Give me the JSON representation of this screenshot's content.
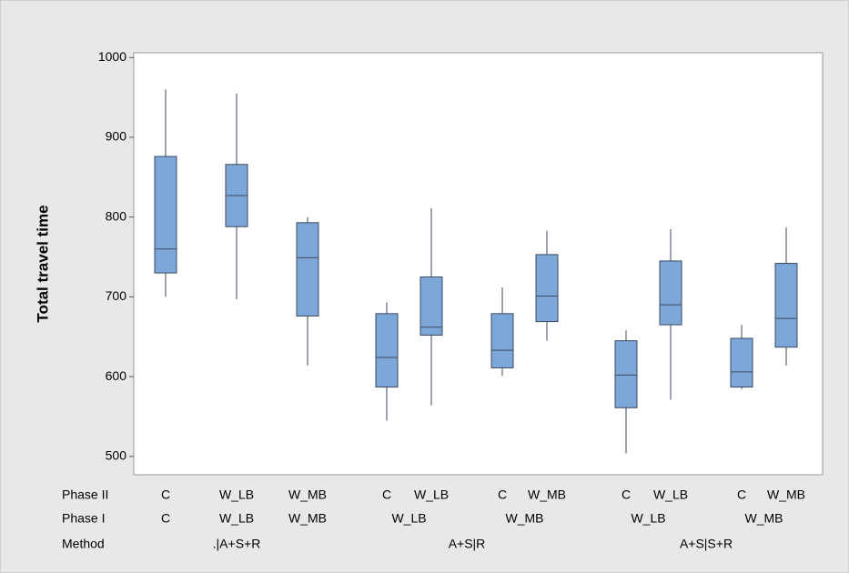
{
  "chart_data": {
    "type": "boxplot",
    "y_label": "Total travel time",
    "ylim": [
      477,
      1006
    ],
    "yticks": [
      500,
      600,
      700,
      800,
      900,
      1000
    ],
    "color": "#7da7d9",
    "edge_color": "#3b4a5e",
    "row_labels": [
      "Phase II",
      "Phase I",
      "Method"
    ],
    "groups": [
      {
        "method": ".|A+S+R",
        "subgroups": [
          {
            "phase1": "C",
            "boxes": [
              {
                "phase2": "C",
                "min": 700,
                "q1": 730,
                "median": 760,
                "q3": 876,
                "max": 960
              }
            ]
          },
          {
            "phase1": "W_LB",
            "boxes": [
              {
                "phase2": "W_LB",
                "min": 697,
                "q1": 788,
                "median": 827,
                "q3": 866,
                "max": 955
              }
            ]
          },
          {
            "phase1": "W_MB",
            "boxes": [
              {
                "phase2": "W_MB",
                "min": 614,
                "q1": 676,
                "median": 749,
                "q3": 793,
                "max": 800
              }
            ]
          }
        ]
      },
      {
        "method": "A+S|R",
        "subgroups": [
          {
            "phase1": "W_LB",
            "boxes": [
              {
                "phase2": "C",
                "min": 545,
                "q1": 587,
                "median": 624,
                "q3": 679,
                "max": 693
              },
              {
                "phase2": "W_LB",
                "min": 564,
                "q1": 652,
                "median": 662,
                "q3": 725,
                "max": 811
              }
            ]
          },
          {
            "phase1": "W_MB",
            "boxes": [
              {
                "phase2": "C",
                "min": 601,
                "q1": 611,
                "median": 633,
                "q3": 679,
                "max": 712
              },
              {
                "phase2": "W_MB",
                "min": 645,
                "q1": 669,
                "median": 701,
                "q3": 753,
                "max": 783
              }
            ]
          }
        ]
      },
      {
        "method": "A+S|S+R",
        "subgroups": [
          {
            "phase1": "W_LB",
            "boxes": [
              {
                "phase2": "C",
                "min": 504,
                "q1": 561,
                "median": 602,
                "q3": 645,
                "max": 658
              },
              {
                "phase2": "W_LB",
                "min": 571,
                "q1": 665,
                "median": 690,
                "q3": 745,
                "max": 785
              }
            ]
          },
          {
            "phase1": "W_MB",
            "boxes": [
              {
                "phase2": "C",
                "min": 584,
                "q1": 587,
                "median": 606,
                "q3": 648,
                "max": 665
              },
              {
                "phase2": "W_MB",
                "min": 614,
                "q1": 637,
                "median": 673,
                "q3": 742,
                "max": 787
              }
            ]
          }
        ]
      }
    ]
  }
}
